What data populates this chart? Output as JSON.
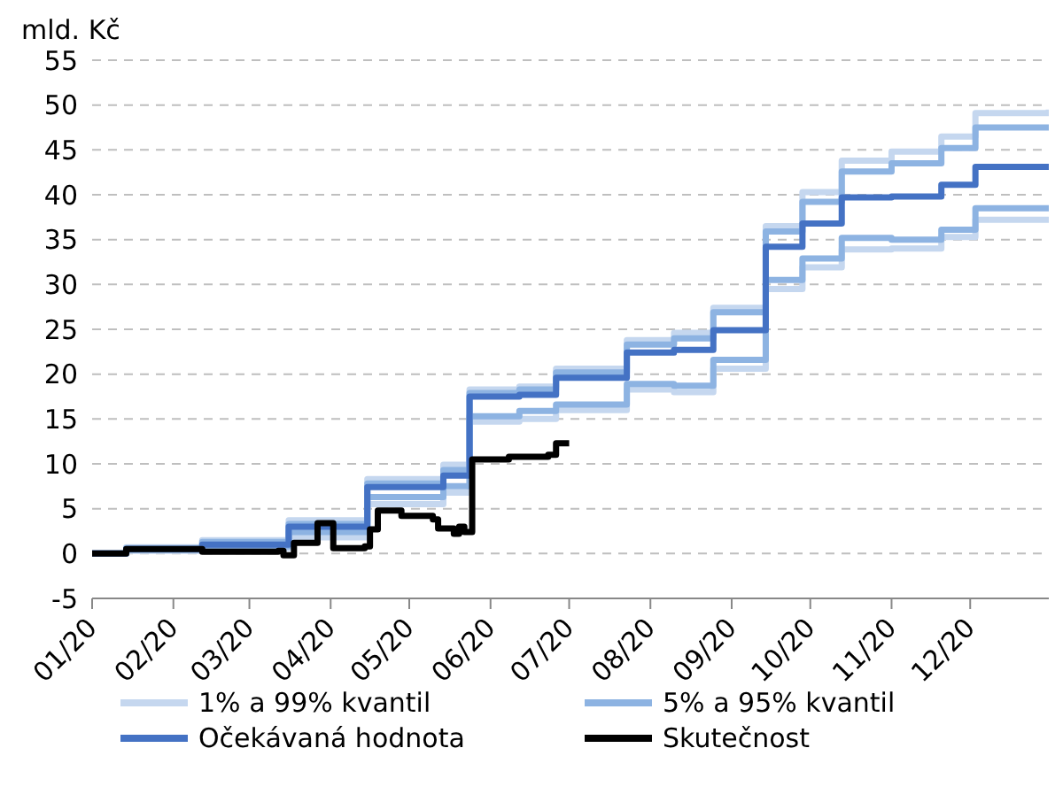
{
  "chart_data": {
    "type": "step",
    "ylabel": "mld. Kč",
    "x": [
      "2020-01-01",
      "2020-01-14",
      "2020-02-12",
      "2020-03-16",
      "2020-04-15",
      "2020-05-14",
      "2020-05-24",
      "2020-06-12",
      "2020-06-26",
      "2020-07-23",
      "2020-08-10",
      "2020-08-25",
      "2020-09-14",
      "2020-09-28",
      "2020-10-13",
      "2020-11-01",
      "2020-11-20",
      "2020-12-03",
      "2020-12-31"
    ],
    "series": [
      {
        "name": "1% a 99% kvantil",
        "color": "#c5d7ef",
        "values": [
          0,
          0.3,
          0.6,
          1.8,
          5.5,
          6.8,
          14.7,
          15.0,
          16.0,
          18.3,
          18.0,
          20.6,
          29.5,
          31.9,
          33.9,
          34.0,
          35.3,
          37.2,
          37.0
        ]
      },
      {
        "color": "#c5d7ef",
        "values": [
          0,
          0.7,
          1.5,
          3.7,
          8.3,
          9.9,
          18.3,
          18.6,
          20.6,
          23.8,
          24.6,
          27.4,
          36.5,
          40.3,
          43.8,
          44.8,
          46.5,
          49.1,
          49.5
        ]
      },
      {
        "name": "5% a 95% kvantil",
        "color": "#8db3e2",
        "values": [
          0,
          0.4,
          0.8,
          2.4,
          6.3,
          7.5,
          15.3,
          15.9,
          16.6,
          18.9,
          18.7,
          21.6,
          30.5,
          32.9,
          35.2,
          35.0,
          36.1,
          38.5,
          38.2
        ]
      },
      {
        "color": "#8db3e2",
        "values": [
          0,
          0.6,
          1.3,
          3.3,
          7.8,
          9.3,
          17.9,
          18.3,
          20.2,
          23.3,
          24.0,
          26.9,
          35.9,
          39.2,
          42.6,
          43.5,
          45.2,
          47.5,
          47.3
        ]
      },
      {
        "name": "Očekávaná hodnota",
        "color": "#4472c4",
        "values": [
          0,
          0.5,
          1.0,
          3.0,
          7.4,
          8.7,
          17.5,
          17.7,
          19.6,
          22.4,
          22.7,
          24.9,
          34.2,
          36.8,
          39.7,
          39.8,
          41.1,
          43.1,
          43.0
        ]
      },
      {
        "name": "Skutečnost",
        "color": "#000000",
        "x": [
          "2020-01-01",
          "2020-01-14",
          "2020-02-12",
          "2020-03-12",
          "2020-03-14",
          "2020-03-18",
          "2020-03-27",
          "2020-04-02",
          "2020-04-14",
          "2020-04-16",
          "2020-04-19",
          "2020-04-28",
          "2020-05-10",
          "2020-05-12",
          "2020-05-18",
          "2020-05-20",
          "2020-05-22",
          "2020-05-25",
          "2020-06-08",
          "2020-06-23",
          "2020-06-26",
          "2020-07-01"
        ],
        "values": [
          0,
          0.5,
          0.2,
          0.3,
          -0.2,
          1.2,
          3.4,
          0.6,
          0.8,
          2.7,
          4.8,
          4.2,
          3.8,
          2.8,
          2.2,
          3,
          2.4,
          10.5,
          10.8,
          11,
          12.3,
          12.3
        ]
      }
    ],
    "xlim": [
      "2020-01-01",
      "2020-12-31"
    ],
    "xticks": [
      {
        "value": "2020-01-01",
        "label": "01/20"
      },
      {
        "value": "2020-02-01",
        "label": "02/20"
      },
      {
        "value": "2020-03-01",
        "label": "03/20"
      },
      {
        "value": "2020-04-01",
        "label": "04/20"
      },
      {
        "value": "2020-05-01",
        "label": "05/20"
      },
      {
        "value": "2020-06-01",
        "label": "06/20"
      },
      {
        "value": "2020-07-01",
        "label": "07/20"
      },
      {
        "value": "2020-08-01",
        "label": "08/20"
      },
      {
        "value": "2020-09-01",
        "label": "09/20"
      },
      {
        "value": "2020-10-01",
        "label": "10/20"
      },
      {
        "value": "2020-11-01",
        "label": "11/20"
      },
      {
        "value": "2020-12-01",
        "label": "12/20"
      }
    ],
    "ylim": [
      -5,
      55
    ],
    "yticks": [
      -5,
      0,
      5,
      10,
      15,
      20,
      25,
      30,
      35,
      40,
      45,
      50,
      55
    ],
    "grid": "y",
    "legend": "bottom"
  }
}
